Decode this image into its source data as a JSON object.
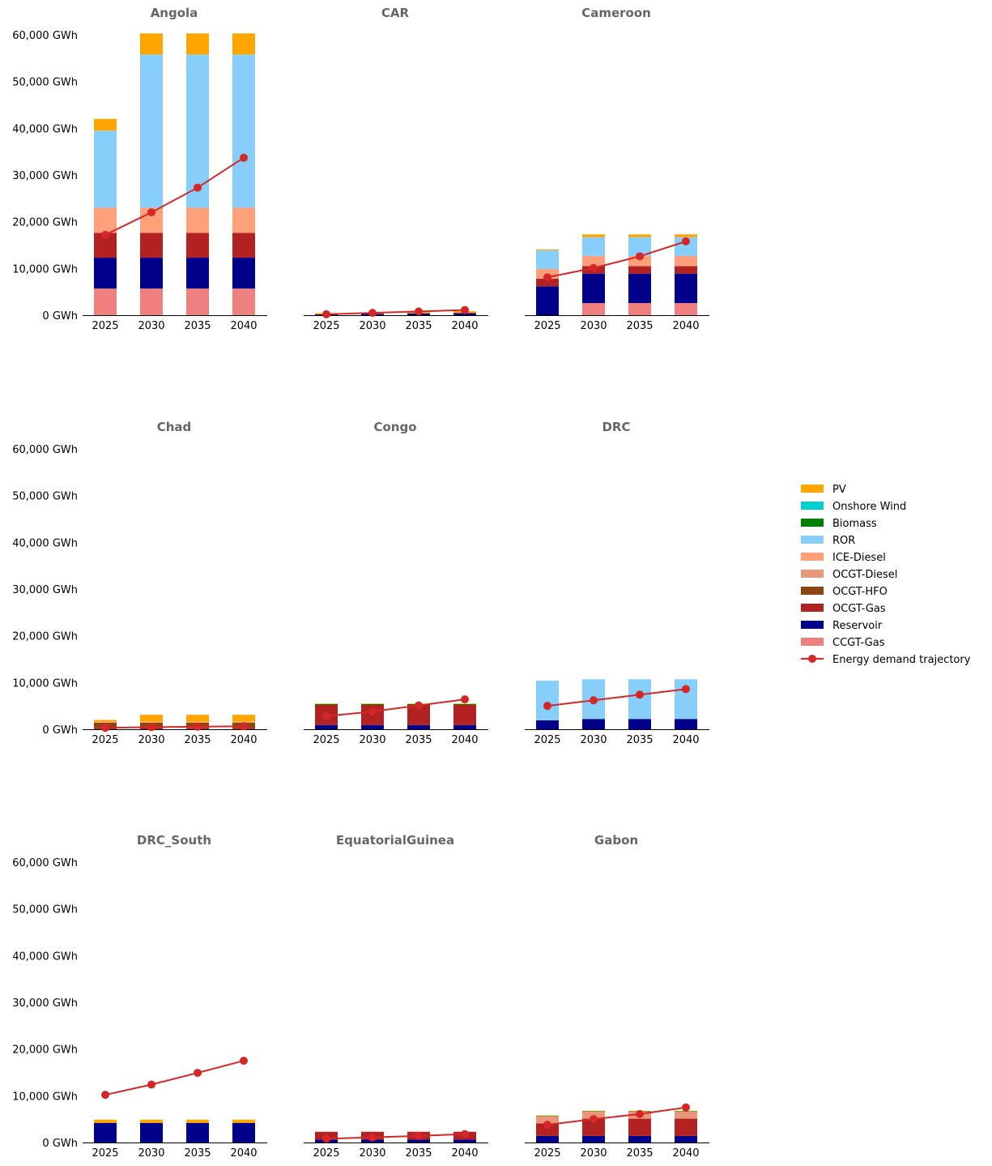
{
  "chart_data": {
    "type": "bar",
    "subtype": "stacked-bar-with-line-small-multiples",
    "unit": "GWh",
    "ylim": [
      0,
      60000
    ],
    "yticks": [
      0,
      10000,
      20000,
      30000,
      40000,
      50000,
      60000
    ],
    "ytick_labels": [
      "0 GWh",
      "10,000 GWh",
      "20,000 GWh",
      "30,000 GWh",
      "40,000 GWh",
      "50,000 GWh",
      "60,000 GWh"
    ],
    "categories": [
      "2025",
      "2030",
      "2035",
      "2040"
    ],
    "grid": false,
    "legend_position": "right",
    "technologies": [
      {
        "name": "CCGT-Gas",
        "color": "#f08080"
      },
      {
        "name": "Reservoir",
        "color": "#00008b"
      },
      {
        "name": "OCGT-Gas",
        "color": "#b22222"
      },
      {
        "name": "OCGT-HFO",
        "color": "#8b4513"
      },
      {
        "name": "OCGT-Diesel",
        "color": "#e9967a"
      },
      {
        "name": "ICE-Diesel",
        "color": "#ffa07a"
      },
      {
        "name": "ROR",
        "color": "#87cefa"
      },
      {
        "name": "Biomass",
        "color": "#008000"
      },
      {
        "name": "Onshore Wind",
        "color": "#00ced1"
      },
      {
        "name": "PV",
        "color": "#ffa500"
      }
    ],
    "legend_order": [
      "PV",
      "Onshore Wind",
      "Biomass",
      "ROR",
      "ICE-Diesel",
      "OCGT-Diesel",
      "OCGT-HFO",
      "OCGT-Gas",
      "Reservoir",
      "CCGT-Gas",
      "Energy demand trajectory"
    ],
    "demand_series_name": "Energy demand trajectory",
    "demand_color": "#d62728",
    "panels": [
      {
        "title": "Angola",
        "series": {
          "CCGT-Gas": [
            5700,
            5700,
            5700,
            5700
          ],
          "Reservoir": [
            6600,
            6600,
            6600,
            6600
          ],
          "OCGT-Gas": [
            5300,
            5300,
            5300,
            5300
          ],
          "OCGT-Diesel": [
            0,
            0,
            0,
            0
          ],
          "ICE-Diesel": [
            5400,
            5400,
            5400,
            5400
          ],
          "ROR": [
            16500,
            32800,
            32800,
            32800
          ],
          "PV": [
            2500,
            4500,
            4500,
            4500
          ]
        },
        "demand": [
          17200,
          22000,
          27300,
          33700
        ]
      },
      {
        "title": "CAR",
        "series": {
          "Reservoir": [
            200,
            300,
            400,
            450
          ],
          "PV": [
            250,
            300,
            350,
            400
          ]
        },
        "demand": [
          200,
          500,
          800,
          1100
        ]
      },
      {
        "title": "Cameroon",
        "series": {
          "CCGT-Gas": [
            0,
            2600,
            2600,
            2600
          ],
          "Reservoir": [
            6200,
            6300,
            6300,
            6300
          ],
          "OCGT-Gas": [
            1600,
            1600,
            1600,
            1600
          ],
          "ICE-Diesel": [
            2100,
            2200,
            2200,
            2200
          ],
          "ROR": [
            4000,
            4000,
            4000,
            4000
          ],
          "PV": [
            200,
            600,
            600,
            600
          ]
        },
        "demand": [
          8100,
          10100,
          12600,
          15800
        ]
      },
      {
        "title": "Chad",
        "series": {
          "OCGT-Gas": [
            300,
            300,
            300,
            300
          ],
          "OCGT-HFO": [
            1100,
            1100,
            1100,
            1100
          ],
          "ICE-Diesel": [
            200,
            200,
            200,
            200
          ],
          "PV": [
            400,
            1500,
            1500,
            1500
          ]
        },
        "demand": [
          300,
          450,
          550,
          650
        ]
      },
      {
        "title": "Congo",
        "series": {
          "Reservoir": [
            900,
            900,
            900,
            900
          ],
          "OCGT-Gas": [
            4300,
            4300,
            4300,
            4300
          ],
          "Biomass": [
            200,
            200,
            200,
            200
          ],
          "PV": [
            100,
            100,
            100,
            100
          ]
        },
        "demand": [
          2800,
          3800,
          5100,
          6400
        ]
      },
      {
        "title": "DRC",
        "series": {
          "Reservoir": [
            1900,
            2200,
            2200,
            2200
          ],
          "ROR": [
            8500,
            8500,
            8500,
            8500
          ]
        },
        "demand": [
          5000,
          6200,
          7400,
          8600
        ]
      },
      {
        "title": "DRC_South",
        "series": {
          "Reservoir": [
            4200,
            4200,
            4200,
            4200
          ],
          "PV": [
            700,
            700,
            700,
            700
          ]
        },
        "demand": [
          10200,
          12400,
          14900,
          17500
        ]
      },
      {
        "title": "EquatorialGuinea",
        "series": {
          "Reservoir": [
            600,
            600,
            600,
            600
          ],
          "OCGT-Gas": [
            1700,
            1700,
            1700,
            1700
          ]
        },
        "demand": [
          800,
          1100,
          1400,
          1800
        ]
      },
      {
        "title": "Gabon",
        "series": {
          "Reservoir": [
            1400,
            1400,
            1400,
            1400
          ],
          "OCGT-Gas": [
            2700,
            3700,
            3700,
            3700
          ],
          "OCGT-Diesel": [
            1500,
            1500,
            1500,
            1500
          ],
          "Biomass": [
            100,
            100,
            100,
            100
          ],
          "PV": [
            100,
            100,
            100,
            100
          ]
        },
        "demand": [
          3800,
          5000,
          6100,
          7500
        ]
      }
    ]
  }
}
